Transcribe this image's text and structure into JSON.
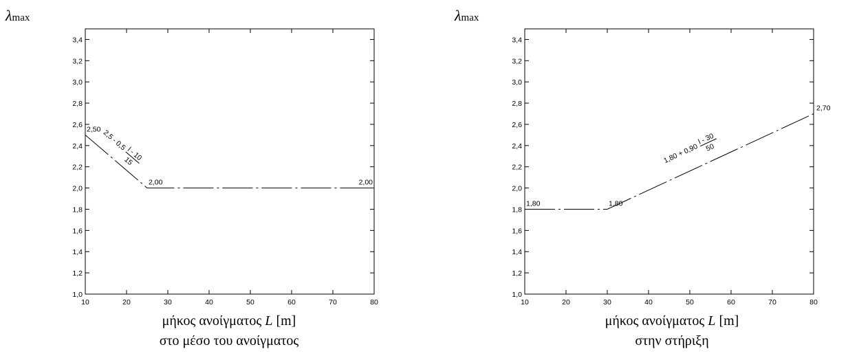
{
  "chart_data": [
    {
      "type": "line",
      "ylabel_symbol": "λ",
      "ylabel_sub": "max",
      "xlabel_prefix": "μήκος ανοίγματος ",
      "xlabel_var": "L",
      "xlabel_unit": " [m]",
      "subtitle": "στο μέσο του ανοίγματος",
      "xlim": [
        10,
        80
      ],
      "ylim": [
        1.0,
        3.5
      ],
      "xticks": [
        10,
        20,
        30,
        40,
        50,
        60,
        70,
        80
      ],
      "xtick_labels": [
        "10",
        "20",
        "30",
        "40",
        "50",
        "60",
        "70",
        "80"
      ],
      "yticks": [
        1.0,
        1.2,
        1.4,
        1.6,
        1.8,
        2.0,
        2.2,
        2.4,
        2.6,
        2.8,
        3.0,
        3.2,
        3.4
      ],
      "ytick_labels": [
        "1,0",
        "1,2",
        "1,4",
        "1,6",
        "1,8",
        "2,0",
        "2,2",
        "2,4",
        "2,6",
        "2,8",
        "3,0",
        "3,2",
        "3,4"
      ],
      "grid": false,
      "series": [
        {
          "x": [
            10,
            25,
            80
          ],
          "y": [
            2.5,
            2.0,
            2.0
          ]
        }
      ],
      "point_labels": [
        {
          "x": 10,
          "y": 2.5,
          "text": "2,50"
        },
        {
          "x": 25,
          "y": 2.0,
          "text": "2,00"
        },
        {
          "x": 80,
          "y": 2.0,
          "text": "2,00"
        }
      ],
      "formula": {
        "x": 17.5,
        "y": 2.25,
        "prefix": "2,5 - 0,5",
        "num": "l - 10",
        "den": "15"
      }
    },
    {
      "type": "line",
      "ylabel_symbol": "λ",
      "ylabel_sub": "max",
      "xlabel_prefix": "μήκος ανοίγματος ",
      "xlabel_var": "L",
      "xlabel_unit": " [m]",
      "subtitle": "στην στήριξη",
      "xlim": [
        10,
        80
      ],
      "ylim": [
        1.0,
        3.5
      ],
      "xticks": [
        10,
        20,
        30,
        40,
        50,
        60,
        70,
        80
      ],
      "xtick_labels": [
        "10",
        "20",
        "30",
        "40",
        "50",
        "60",
        "70",
        "80"
      ],
      "yticks": [
        1.0,
        1.2,
        1.4,
        1.6,
        1.8,
        2.0,
        2.2,
        2.4,
        2.6,
        2.8,
        3.0,
        3.2,
        3.4
      ],
      "ytick_labels": [
        "1,0",
        "1,2",
        "1,4",
        "1,6",
        "1,8",
        "2,0",
        "2,2",
        "2,4",
        "2,6",
        "2,8",
        "3,0",
        "3,2",
        "3,4"
      ],
      "grid": false,
      "series": [
        {
          "x": [
            10,
            30,
            80
          ],
          "y": [
            1.8,
            1.8,
            2.7
          ]
        }
      ],
      "point_labels": [
        {
          "x": 10,
          "y": 1.8,
          "text": "1,80"
        },
        {
          "x": 30,
          "y": 1.8,
          "text": "1,80"
        },
        {
          "x": 80,
          "y": 2.7,
          "text": "2,70"
        }
      ],
      "formula": {
        "x": 52,
        "y": 2.3,
        "prefix": "1,80 + 0,90",
        "num": "l - 30",
        "den": "50"
      }
    }
  ]
}
